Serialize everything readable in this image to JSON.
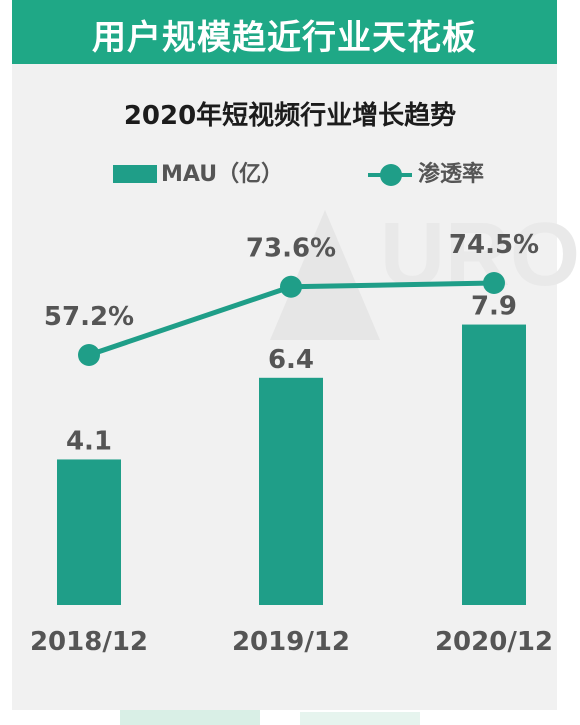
{
  "banner": {
    "title": "用户规模趋近行业天花板"
  },
  "colors": {
    "banner": "#1fa886",
    "bar": "#1f9e88",
    "line": "#1f9e88",
    "label": "#555555",
    "panel": "#f1f1f1"
  },
  "watermark": {
    "text": "URO"
  },
  "chart_data": {
    "type": "bar",
    "title": "2020年短视频行业增长趋势",
    "categories": [
      "2018/12",
      "2019/12",
      "2020/12"
    ],
    "series": [
      {
        "name": "MAU（亿）",
        "type": "bar",
        "values": [
          4.1,
          6.4,
          7.9
        ],
        "labels": [
          "4.1",
          "6.4",
          "7.9"
        ]
      },
      {
        "name": "渗透率",
        "type": "line",
        "values": [
          57.2,
          73.6,
          74.5
        ],
        "labels": [
          "57.2%",
          "73.6%",
          "74.5%"
        ]
      }
    ],
    "legend": "top",
    "grid": false
  }
}
